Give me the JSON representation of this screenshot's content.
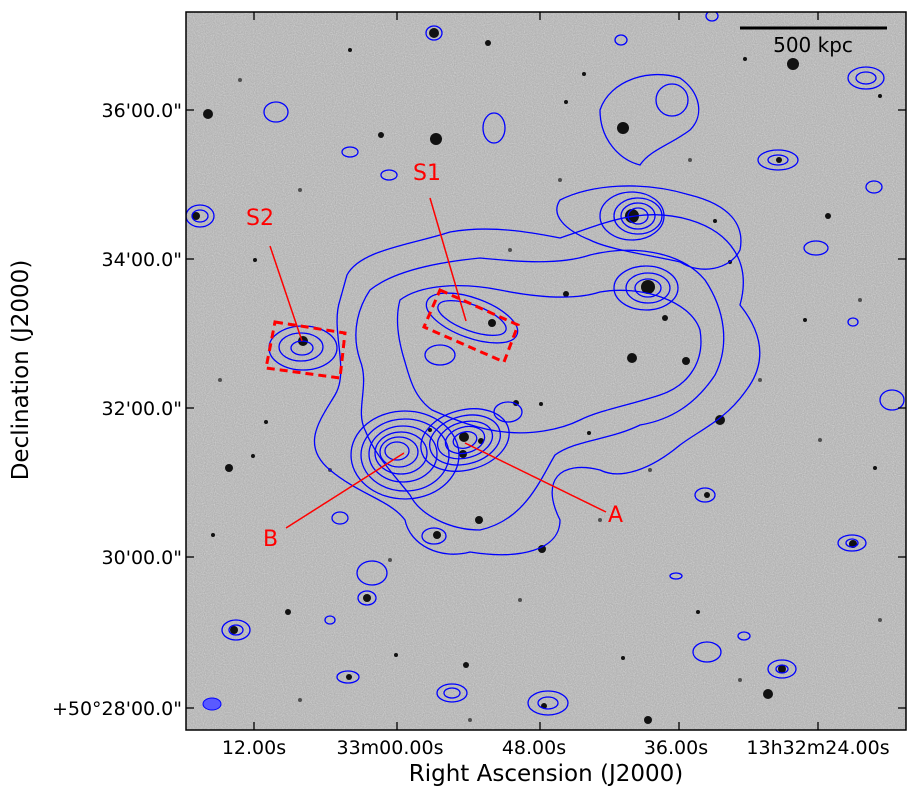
{
  "figure": {
    "x_axis_title": "Right Ascension (J2000)",
    "y_axis_title": "Declination (J2000)",
    "x_ticks": [
      "12.00s",
      "33m00.00s",
      "48.00s",
      "36.00s",
      "13h32m24.00s"
    ],
    "y_ticks": [
      "36'00.0\"",
      "34'00.0\"",
      "32'00.0\"",
      "30'00.0\"",
      "+50°28'00.0\""
    ],
    "scale_bar_label": "500 kpc",
    "labels": {
      "S1": "S1",
      "S2": "S2",
      "A": "A",
      "B": "B"
    },
    "colors": {
      "contours": "#0000ff",
      "annotations": "#ff0000",
      "background": "#a8a8a8"
    }
  }
}
